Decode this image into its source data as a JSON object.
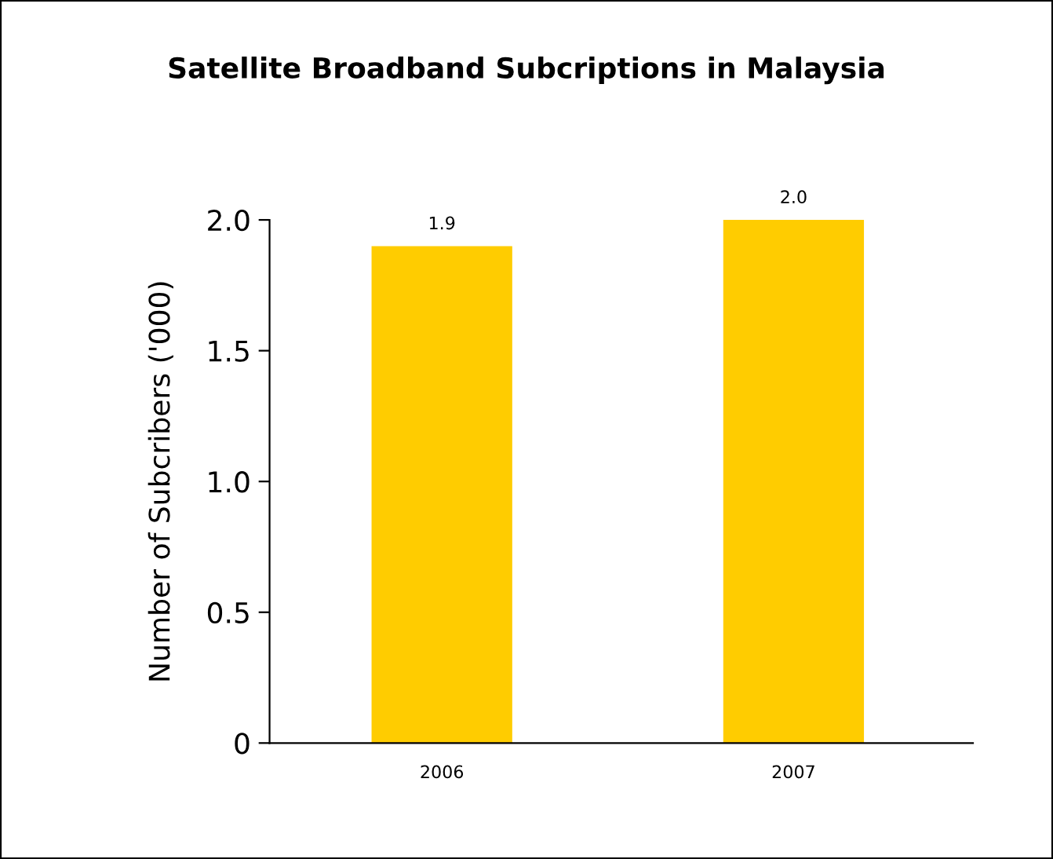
{
  "chart_data": {
    "type": "bar",
    "title": "Satellite Broadband Subcriptions in Malaysia",
    "ylabel": "Number of Subcribers ('000)",
    "categories": [
      "2006",
      "2007"
    ],
    "values": [
      1.9,
      2.0
    ],
    "color": "#ffcc00",
    "ylim": [
      0,
      2.0
    ],
    "yticks": [
      {
        "value": 0,
        "label": "0"
      },
      {
        "value": 0.5,
        "label": "0.5"
      },
      {
        "value": 1.0,
        "label": "1.0"
      },
      {
        "value": 1.5,
        "label": "1.5"
      },
      {
        "value": 2.0,
        "label": "2.0"
      }
    ],
    "value_labels": [
      "1.9",
      "2.0"
    ],
    "grid": false,
    "legend": false
  }
}
